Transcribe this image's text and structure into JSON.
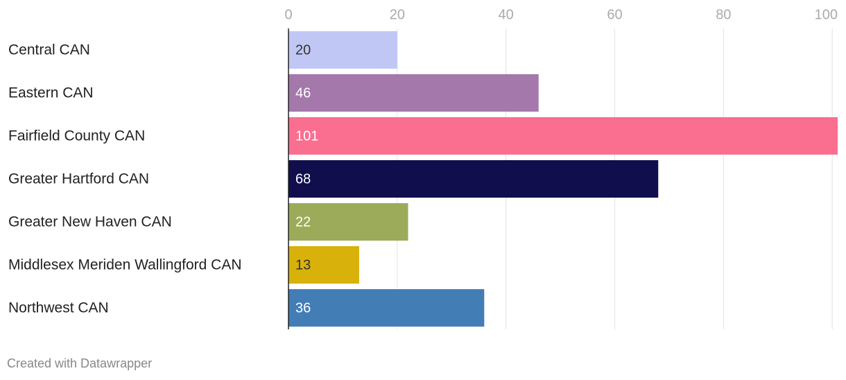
{
  "chart_data": {
    "type": "bar",
    "orientation": "horizontal",
    "categories": [
      "Central CAN",
      "Eastern CAN",
      "Fairfield County CAN",
      "Greater Hartford CAN",
      "Greater New Haven CAN",
      "Middlesex Meriden Wallingford CAN",
      "Northwest CAN"
    ],
    "values": [
      20,
      46,
      101,
      68,
      22,
      13,
      36
    ],
    "colors": [
      "#c1c7f5",
      "#a578ac",
      "#fa6e90",
      "#100e4c",
      "#9cab59",
      "#d8b10a",
      "#437db6"
    ],
    "label_colors": [
      "#333333",
      "#ffffff",
      "#ffffff",
      "#ffffff",
      "#ffffff",
      "#333333",
      "#ffffff"
    ],
    "xlim": [
      0,
      101
    ],
    "xticks": [
      0,
      20,
      40,
      60,
      80,
      100
    ],
    "grid": true,
    "credit": "Created with Datawrapper"
  }
}
